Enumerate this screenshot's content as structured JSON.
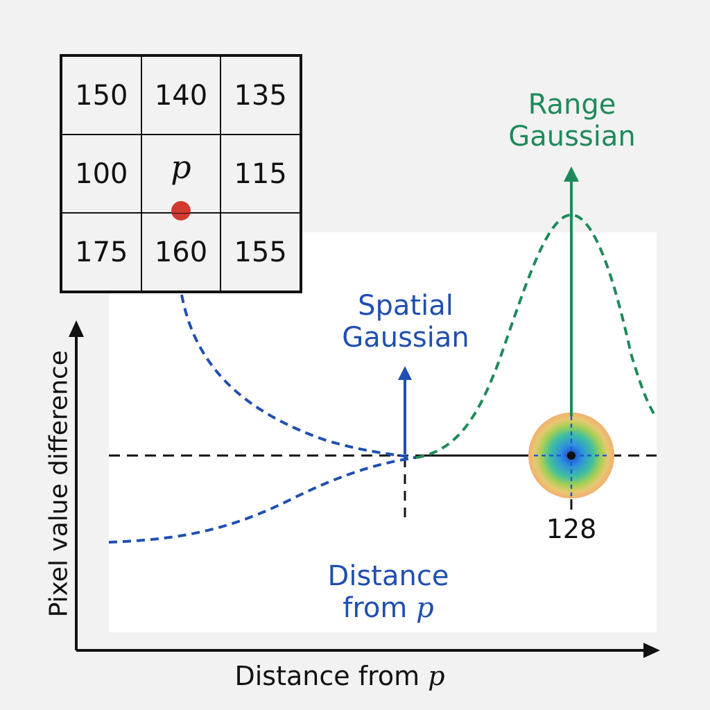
{
  "grid": {
    "cells": [
      [
        "150",
        "140",
        "135"
      ],
      [
        "100",
        "p",
        "115"
      ],
      [
        "175",
        "160",
        "155"
      ]
    ],
    "center_dot_color": "#d33a2f"
  },
  "labels": {
    "range_gaussian_line1": "Range",
    "range_gaussian_line2": "Gaussian",
    "spatial_gaussian_line1": "Spatial",
    "spatial_gaussian_line2": "Gaussian",
    "distance_line1": "Distance",
    "distance_line2_prefix": "from ",
    "distance_line2_var": "p",
    "tick_value": "128",
    "y_axis": "Pixel value difference",
    "x_axis_prefix": "Distance from ",
    "x_axis_var": "p"
  },
  "colors": {
    "range": "#1e8a5a",
    "spatial": "#1f4fb0",
    "axis": "#111111"
  }
}
